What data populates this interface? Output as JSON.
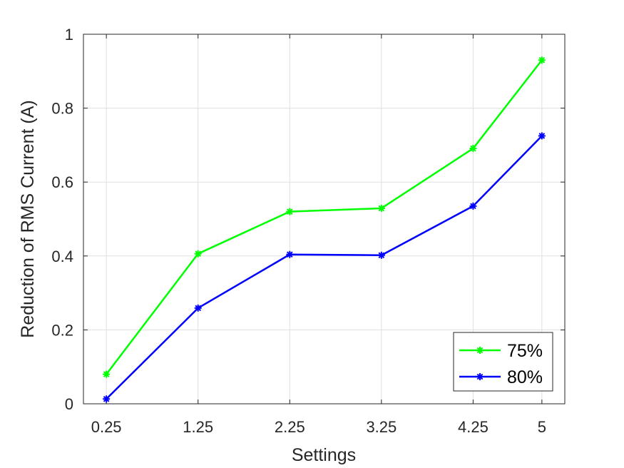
{
  "chart_data": {
    "type": "line",
    "xlabel": "Settings",
    "ylabel": "Reduction of RMS Current (A)",
    "x": [
      0.25,
      1.25,
      2.25,
      3.25,
      4.25,
      5
    ],
    "x_tick_labels": [
      "0.25",
      "1.25",
      "2.25",
      "3.25",
      "4.25",
      "5"
    ],
    "y_ticks": [
      0,
      0.2,
      0.4,
      0.6,
      0.8,
      1
    ],
    "y_tick_labels": [
      "0",
      "0.2",
      "0.4",
      "0.6",
      "0.8",
      "1"
    ],
    "xlim": [
      0,
      5.25
    ],
    "ylim": [
      0,
      1
    ],
    "grid": true,
    "legend_position": "bottom-right",
    "series": [
      {
        "name": "75%",
        "color": "#00ff00",
        "marker": "asterisk",
        "values": [
          0.08,
          0.406,
          0.52,
          0.529,
          0.691,
          0.93
        ]
      },
      {
        "name": "80%",
        "color": "#0000ff",
        "marker": "asterisk",
        "values": [
          0.013,
          0.259,
          0.404,
          0.402,
          0.535,
          0.725
        ]
      }
    ]
  }
}
